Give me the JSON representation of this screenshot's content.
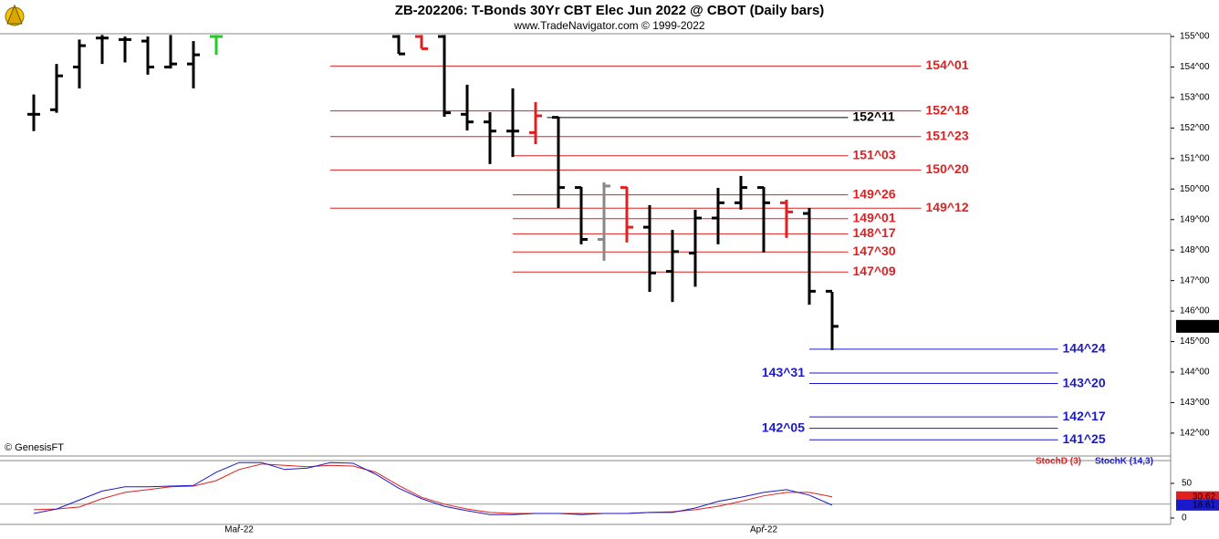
{
  "chart_data": {
    "type": "ohlc",
    "title": "ZB-202206:  T-Bonds 30Yr CBT Elec Jun 2022 @ CBOT  (Daily bars)",
    "subtitle": "www.TradeNavigator.com © 1999-2022",
    "credit": "© GenesisFT",
    "xlim": [
      -1.48,
      49.84
    ],
    "xticks": [
      {
        "value": 9,
        "label": "Mar-22"
      },
      {
        "value": 32,
        "label": "Apr-22"
      }
    ],
    "ylim": [
      141.25,
      155.24
    ],
    "yticks": [
      {
        "value": 155,
        "label": "155^00"
      },
      {
        "value": 154,
        "label": "154^00"
      },
      {
        "value": 153,
        "label": "153^00"
      },
      {
        "value": 152,
        "label": "152^00"
      },
      {
        "value": 151,
        "label": "151^00"
      },
      {
        "value": 150,
        "label": "150^00"
      },
      {
        "value": 149,
        "label": "149^00"
      },
      {
        "value": 148,
        "label": "148^00"
      },
      {
        "value": 147,
        "label": "147^00"
      },
      {
        "value": 146,
        "label": "146^00"
      },
      {
        "value": 145,
        "label": "145^00"
      },
      {
        "value": 144,
        "label": "144^00"
      },
      {
        "value": 143,
        "label": "143^00"
      },
      {
        "value": 142,
        "label": "142^00"
      }
    ],
    "last": {
      "value": 145.5,
      "label": "145^16"
    },
    "bars": {
      "x": [
        0,
        1,
        2,
        3,
        4,
        5,
        6,
        7,
        8,
        16,
        17,
        18,
        19,
        20,
        21,
        22,
        23,
        24,
        25,
        26,
        27,
        28,
        29,
        30,
        31,
        32,
        33,
        34,
        35
      ],
      "open": [
        152.45,
        152.6,
        154.0,
        154.95,
        154.9,
        154.85,
        154.0,
        154.1,
        155.0,
        155.0,
        155.0,
        155.0,
        152.45,
        152.2,
        151.9,
        151.85,
        152.35,
        150.05,
        148.35,
        150.05,
        148.75,
        147.3,
        147.9,
        149.05,
        149.55,
        150.05,
        149.55,
        149.2,
        146.65
      ],
      "high": [
        153.1,
        154.1,
        154.9,
        155.05,
        155.0,
        155.0,
        155.05,
        154.85,
        155.05,
        155.05,
        155.05,
        155.05,
        153.42,
        152.52,
        153.3,
        152.85,
        152.37,
        150.07,
        150.22,
        150.07,
        149.47,
        148.66,
        149.32,
        150.04,
        150.43,
        150.07,
        149.65,
        149.38,
        146.63
      ],
      "low": [
        151.9,
        152.5,
        153.3,
        154.1,
        154.15,
        153.75,
        153.95,
        153.3,
        154.4,
        154.43,
        154.6,
        152.37,
        151.92,
        150.82,
        151.05,
        151.47,
        149.38,
        148.19,
        147.65,
        148.25,
        146.63,
        146.3,
        146.8,
        148.19,
        149.32,
        147.92,
        148.4,
        146.21,
        144.72
      ],
      "close": [
        152.45,
        153.71,
        154.7,
        154.95,
        154.9,
        154.0,
        154.1,
        154.4,
        155.0,
        154.43,
        154.6,
        152.5,
        152.2,
        151.9,
        151.9,
        152.4,
        150.05,
        148.35,
        150.1,
        148.75,
        147.25,
        147.95,
        149.05,
        149.55,
        150.05,
        149.55,
        149.25,
        146.65,
        145.5
      ],
      "colors": [
        "#000000",
        "#000000",
        "#000000",
        "#000000",
        "#000000",
        "#000000",
        "#000000",
        "#000000",
        "#22cc22",
        "#000000",
        "#e02020",
        "#000000",
        "#000000",
        "#000000",
        "#000000",
        "#e02020",
        "#000000",
        "#000000",
        "#888888",
        "#e02020",
        "#000000",
        "#000000",
        "#000000",
        "#000000",
        "#000000",
        "#000000",
        "#e02020",
        "#000000",
        "#000000"
      ]
    },
    "levels": [
      {
        "value": 154.03125,
        "label": "154^01",
        "color": "#e02020",
        "from": 13,
        "to": 38.9,
        "label_side": "right"
      },
      {
        "value": 152.5625,
        "label": "152^18",
        "color": "#e02020",
        "from": 13,
        "to": 38.9,
        "label_side": "right"
      },
      {
        "value": 152.34375,
        "label": "152^11",
        "color": "#000000",
        "from": 22.5,
        "to": 35.7,
        "label_side": "right"
      },
      {
        "value": 151.71875,
        "label": "151^23",
        "color": "#e02020",
        "from": 13,
        "to": 38.9,
        "label_side": "right"
      },
      {
        "value": 151.09375,
        "label": "151^03",
        "color": "#e02020",
        "from": 21,
        "to": 35.7,
        "label_side": "right"
      },
      {
        "value": 150.625,
        "label": "150^20",
        "color": "#e02020",
        "from": 13,
        "to": 38.9,
        "label_side": "right"
      },
      {
        "value": 149.8125,
        "label": "149^26",
        "color": "#e02020",
        "from": 21,
        "to": 35.7,
        "label_side": "right"
      },
      {
        "value": 149.375,
        "label": "149^12",
        "color": "#e02020",
        "from": 13,
        "to": 38.9,
        "label_side": "right"
      },
      {
        "value": 149.03125,
        "label": "149^01",
        "color": "#e02020",
        "from": 21,
        "to": 35.7,
        "label_side": "right"
      },
      {
        "value": 148.53125,
        "label": "148^17",
        "color": "#e02020",
        "from": 21,
        "to": 35.7,
        "label_side": "right"
      },
      {
        "value": 147.9375,
        "label": "147^30",
        "color": "#e02020",
        "from": 21,
        "to": 35.7,
        "label_side": "right"
      },
      {
        "value": 147.28125,
        "label": "147^09",
        "color": "#e02020",
        "from": 21,
        "to": 35.7,
        "label_side": "right"
      },
      {
        "value": 144.75,
        "label": "144^24",
        "color": "#1a1acc",
        "from": 34,
        "to": 44.9,
        "label_side": "right"
      },
      {
        "value": 143.96875,
        "label": "143^31",
        "color": "#1a1acc",
        "from": 34,
        "to": 44.9,
        "label_side": "left"
      },
      {
        "value": 143.625,
        "label": "143^20",
        "color": "#1a1acc",
        "from": 34,
        "to": 44.9,
        "label_side": "right"
      },
      {
        "value": 142.53125,
        "label": "142^17",
        "color": "#1a1acc",
        "from": 34,
        "to": 44.9,
        "label_side": "right"
      },
      {
        "value": 142.15625,
        "label": "142^05",
        "color": "#1a1acc",
        "from": 34,
        "to": 44.9,
        "label_side": "left"
      },
      {
        "value": 141.78125,
        "label": "141^25",
        "color": "#1a1acc",
        "from": 34,
        "to": 44.9,
        "label_side": "right"
      }
    ],
    "stochastic": {
      "ylim": [
        -9.2,
        82.9
      ],
      "yticks": [
        50,
        0
      ],
      "reference_lines": [
        20
      ],
      "x": [
        0,
        1,
        2,
        3,
        4,
        5,
        6,
        7,
        8,
        9,
        10,
        11,
        12,
        13,
        14,
        15,
        16,
        17,
        18,
        19,
        20,
        21,
        22,
        23,
        24,
        25,
        26,
        27,
        28,
        29,
        30,
        31,
        32,
        33,
        34,
        35
      ],
      "series": [
        {
          "name": "StochD (3)",
          "color": "#e02020",
          "values": [
            12,
            13,
            16,
            28,
            37,
            41,
            45,
            46,
            54,
            70,
            78,
            76,
            74,
            76,
            75,
            66,
            47,
            30,
            20,
            13,
            8,
            6.6,
            6.6,
            6.6,
            6.6,
            6.6,
            6.6,
            8,
            9,
            12,
            17,
            24,
            32,
            37,
            37,
            30.62
          ]
        },
        {
          "name": "StochK (14,3)",
          "color": "#1a1acc",
          "values": [
            6.6,
            13,
            26,
            39,
            45,
            45,
            46,
            47,
            66,
            80,
            80,
            70,
            72,
            80,
            79,
            63,
            43,
            28,
            17,
            10.5,
            5,
            5,
            6.6,
            6.6,
            5,
            6.6,
            6.6,
            8,
            8,
            14.5,
            24,
            30,
            37,
            41,
            33,
            18.61
          ]
        }
      ]
    }
  }
}
